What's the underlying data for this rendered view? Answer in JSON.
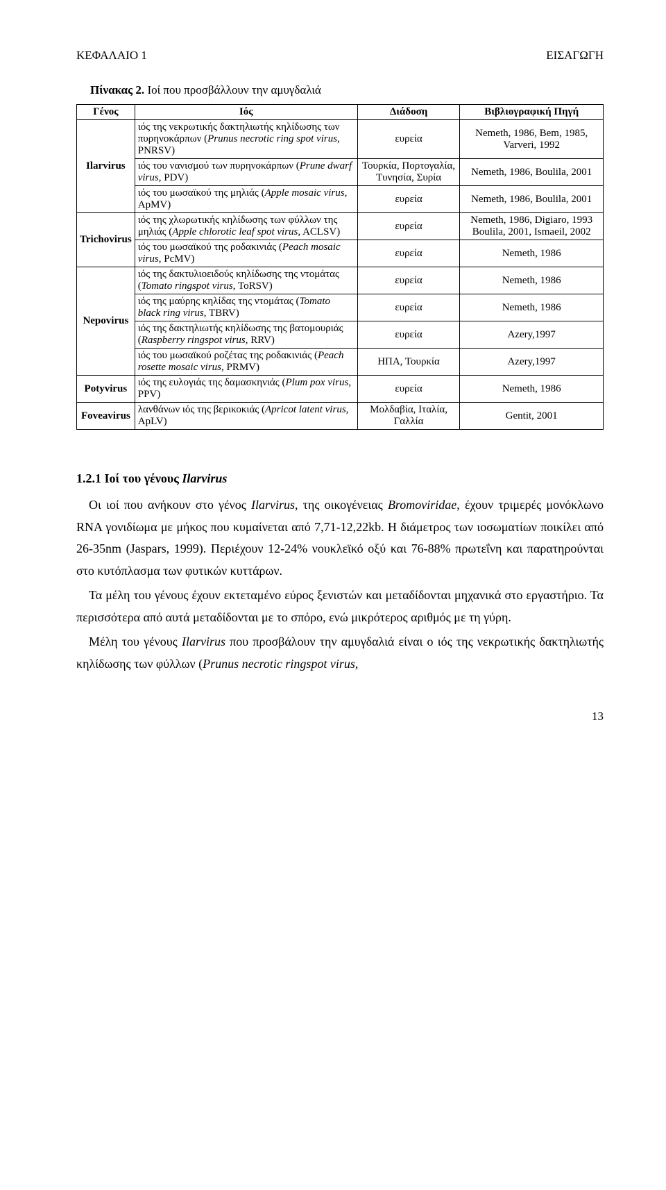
{
  "header": {
    "left": "ΚΕΦΑΛΑΙΟ 1",
    "right": "ΕΙΣΑΓΩΓΗ"
  },
  "table": {
    "caption_bold": "Πίνακας 2.",
    "caption_rest": " Ιοί που προσβάλλουν την αμυγδαλιά",
    "headers": {
      "genus": "Γένος",
      "virus": "Ιός",
      "spread": "Διάδοση",
      "ref": "Βιβλιογραφική Πηγή"
    },
    "groups": [
      {
        "genus": "Ilarvirus",
        "rows": [
          {
            "v_pre": "ιός της νεκρωτικής δακτηλιωτής κηλίδωσης των πυρηνοκάρπων (",
            "v_it": "Prunus necrotic ring spot virus",
            "v_post": ", PNRSV)",
            "spread": "ευρεία",
            "ref": "Nemeth, 1986, Bem, 1985, Varveri, 1992"
          },
          {
            "v_pre": "ιός του νανισμού των πυρηνοκάρπων (",
            "v_it": "Prune dwarf virus",
            "v_post": ", PDV)",
            "spread": "Τουρκία, Πορτογαλία, Τυνησία, Συρία",
            "ref": "Nemeth, 1986, Boulila, 2001"
          },
          {
            "v_pre": "ιός του μωσαϊκού της μηλιάς (",
            "v_it": "Apple mosaic virus",
            "v_post": ", ApMV)",
            "spread": "ευρεία",
            "ref": "Nemeth, 1986, Boulila, 2001"
          }
        ]
      },
      {
        "genus": "Trichovirus",
        "rows": [
          {
            "v_pre": "ιός της χλωρωτικής κηλίδωσης των φύλλων της μηλιάς (",
            "v_it": "Apple chlorotic leaf spot virus",
            "v_post": ", ACLSV)",
            "spread": "ευρεία",
            "ref": "Nemeth, 1986, Digiaro, 1993 Boulila, 2001, Ismaeil, 2002"
          },
          {
            "v_pre": "ιός του μωσαϊκού της ροδακινιάς (",
            "v_it": "Peach mosaic virus",
            "v_post": ", PcMV)",
            "spread": "ευρεία",
            "ref": "Nemeth, 1986"
          }
        ]
      },
      {
        "genus": "Nepovirus",
        "rows": [
          {
            "v_pre": "ιός της δακτυλιοειδούς κηλίδωσης της ντομάτας (",
            "v_it": "Tomato ringspot virus",
            "v_post": ", ToRSV)",
            "spread": "ευρεία",
            "ref": "Nemeth, 1986"
          },
          {
            "v_pre": "ιός της μαύρης κηλίδας της ντομάτας (",
            "v_it": "Tomato black ring virus",
            "v_post": ", TBRV)",
            "spread": "ευρεία",
            "ref": "Nemeth, 1986"
          },
          {
            "v_pre": "ιός της δακτηλιωτής κηλίδωσης της βατομουριάς (",
            "v_it": "Raspberry ringspot virus",
            "v_post": ", RRV)",
            "spread": "ευρεία",
            "ref": "Azery,1997"
          },
          {
            "v_pre": "ιός του μωσαϊκού ροζέτας της ροδακινιάς (",
            "v_it": "Peach rosette mosaic virus",
            "v_post": ", PRMV)",
            "spread": "ΗΠΑ, Τουρκία",
            "ref": "Azery,1997"
          }
        ]
      },
      {
        "genus": "Potyvirus",
        "rows": [
          {
            "v_pre": "ιός της ευλογιάς της δαμασκηνιάς  (",
            "v_it": "Plum pox virus",
            "v_post": ", PPV)",
            "spread": "ευρεία",
            "ref": "Nemeth, 1986"
          }
        ]
      },
      {
        "genus": "Foveavirus",
        "rows": [
          {
            "v_pre": "λανθάνων ιός της βερικοκιάς (",
            "v_it": "Apricot latent virus",
            "v_post": ", ApLV)",
            "spread": "Μολδαβία, Ιταλία, Γαλλία",
            "ref": "Gentit, 2001"
          }
        ]
      }
    ]
  },
  "section": {
    "num": "1.2.1 Ιοί του γένους ",
    "it": "Ilarvirus"
  },
  "para1": {
    "a": "Οι ιοί που ανήκουν στο γένος ",
    "b": "Ilarvirus",
    "c": ", της οικογένειας ",
    "d": "Bromoviridae",
    "e": ", έχουν τριμερές μονόκλωνο  RNA γονιδίωμα με μήκος που κυμαίνεται από 7,71-12,22kb. Η διάμετρος των ιοσωματίων ποικίλει από 26-35nm (Jaspars, 1999). Περιέχουν 12-24% νουκλεϊκό οξύ και 76-88% πρωτεΐνη και παρατηρούνται στο κυτόπλασμα των φυτικών κυττάρων."
  },
  "para2": "Τα μέλη του γένους έχουν εκτεταμένο εύρος ξενιστών και μεταδίδονται μηχανικά στο εργαστήριο. Τα περισσότερα από αυτά μεταδίδονται με το σπόρο, ενώ μικρότερος αριθμός με τη γύρη.",
  "para3": {
    "a": "Μέλη του γένους ",
    "b": "Ilarvirus",
    "c": " που προσβάλουν την αμυγδαλιά είναι ο ιός της νεκρωτικής δακτηλιωτής κηλίδωσης των φύλλων (",
    "d": "Prunus necrotic ringspot virus",
    "e": ","
  },
  "page_number": "13"
}
